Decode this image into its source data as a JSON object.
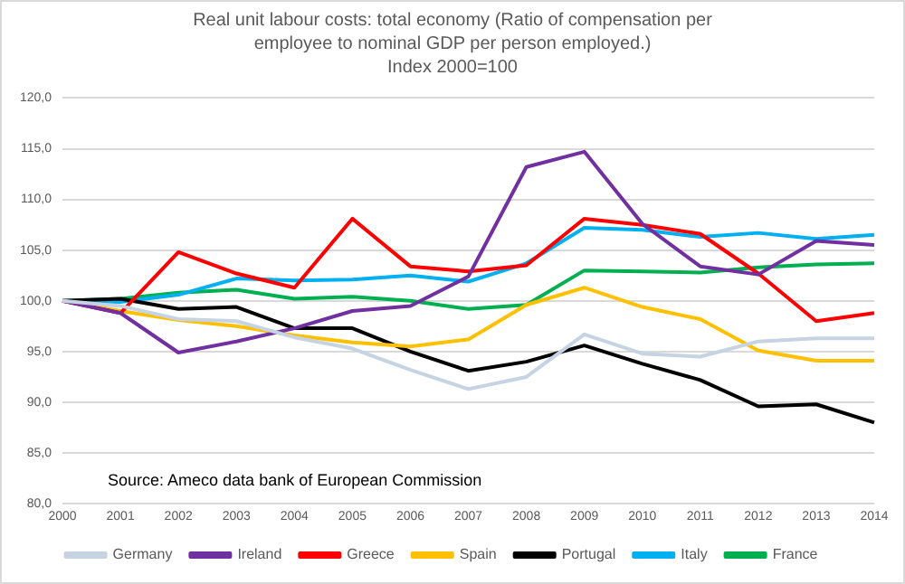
{
  "chart_data": {
    "type": "line",
    "title": "Real unit labour costs: total economy (Ratio of compensation per employee to nominal GDP per person employed.)",
    "subtitle": "Index 2000=100",
    "categories": [
      "2000",
      "2001",
      "2002",
      "2003",
      "2004",
      "2005",
      "2006",
      "2007",
      "2008",
      "2009",
      "2010",
      "2011",
      "2012",
      "2013",
      "2014"
    ],
    "series": [
      {
        "name": "Germany",
        "color": "#c5d3e3",
        "values": [
          100,
          99.5,
          98.2,
          98.0,
          96.4,
          95.3,
          93.2,
          91.3,
          92.5,
          96.7,
          94.8,
          94.5,
          96.0,
          96.3,
          96.3
        ]
      },
      {
        "name": "Ireland",
        "color": "#7030a0",
        "values": [
          100,
          98.8,
          94.9,
          96.0,
          97.3,
          99.0,
          99.5,
          102.4,
          113.2,
          114.7,
          107.6,
          103.4,
          102.6,
          105.9,
          105.5
        ]
      },
      {
        "name": "Greece",
        "color": "#ff0000",
        "values": [
          100,
          98.8,
          104.8,
          102.7,
          101.3,
          108.1,
          103.4,
          102.9,
          103.5,
          108.1,
          107.5,
          106.6,
          102.7,
          98.0,
          98.8
        ]
      },
      {
        "name": "Spain",
        "color": "#ffc000",
        "values": [
          100,
          99.0,
          98.1,
          97.5,
          96.6,
          95.9,
          95.5,
          96.2,
          99.6,
          101.3,
          99.4,
          98.2,
          95.1,
          94.1,
          94.1
        ]
      },
      {
        "name": "Portugal",
        "color": "#000000",
        "values": [
          100,
          100.2,
          99.2,
          99.4,
          97.3,
          97.3,
          95.0,
          93.1,
          94.0,
          95.6,
          93.8,
          92.2,
          89.6,
          89.8,
          88.0
        ]
      },
      {
        "name": "Italy",
        "color": "#00b0f0",
        "values": [
          100,
          99.9,
          100.6,
          102.2,
          102.0,
          102.1,
          102.5,
          101.9,
          103.7,
          107.2,
          107.0,
          106.3,
          106.7,
          106.1,
          106.5
        ]
      },
      {
        "name": "France",
        "color": "#00b050",
        "values": [
          100,
          100.2,
          100.8,
          101.1,
          100.2,
          100.4,
          100.0,
          99.2,
          99.6,
          103.0,
          102.9,
          102.8,
          103.3,
          103.6,
          103.7
        ]
      }
    ],
    "ylim": [
      80,
      120
    ],
    "yticks": [
      {
        "value": 80,
        "label": "80,0"
      },
      {
        "value": 85,
        "label": "85,0"
      },
      {
        "value": 90,
        "label": "90,0"
      },
      {
        "value": 95,
        "label": "95,0"
      },
      {
        "value": 100,
        "label": "100,0"
      },
      {
        "value": 105,
        "label": "105,0"
      },
      {
        "value": 110,
        "label": "110,0"
      },
      {
        "value": 115,
        "label": "115,0"
      },
      {
        "value": 120,
        "label": "120,0"
      }
    ],
    "grid": "y",
    "legend": "bottom",
    "marker": "none",
    "line_style": "solid",
    "annotations": [
      "Source: Ameco data bank of European Commission"
    ]
  }
}
